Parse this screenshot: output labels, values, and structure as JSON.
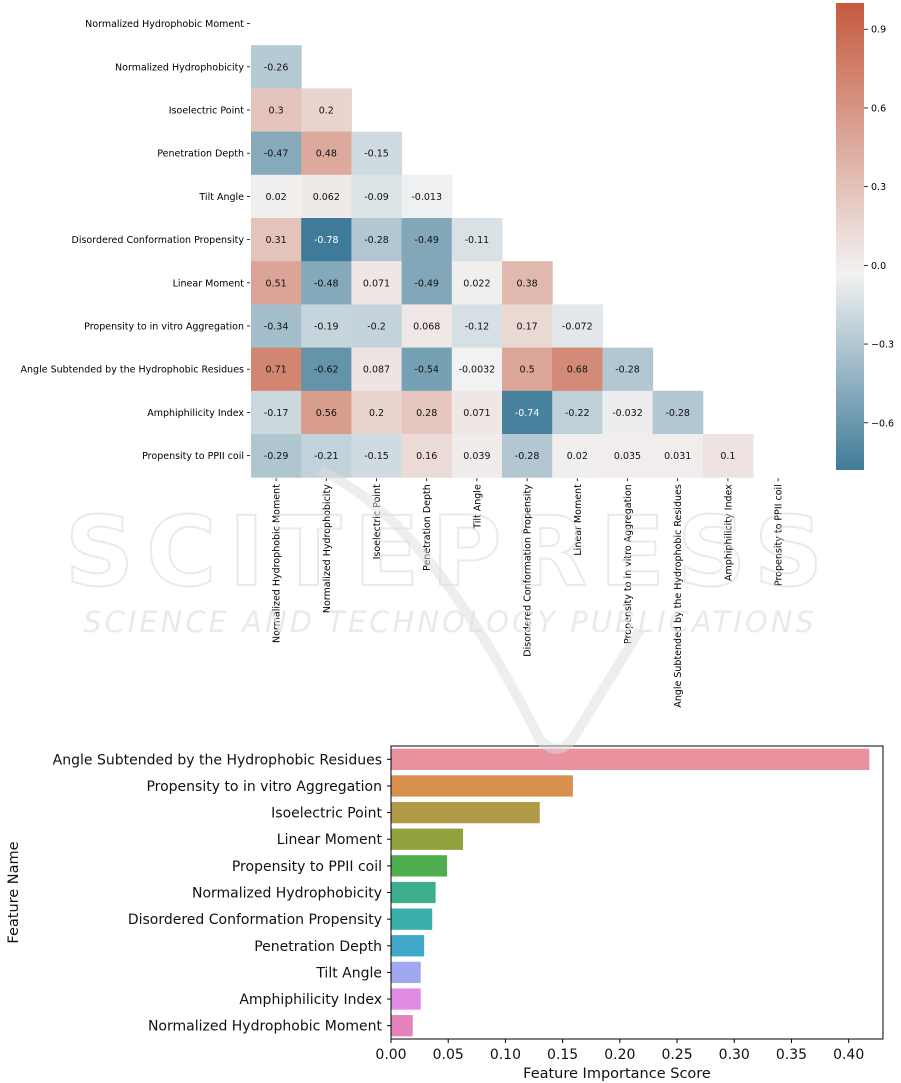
{
  "watermark": {
    "line1": "SCITEPRESS",
    "line2": "SCIENCE AND TECHNOLOGY PUBLICATIONS"
  },
  "chart_data": [
    {
      "type": "heatmap",
      "variables": [
        "Normalized Hydrophobic Moment",
        "Normalized Hydrophobicity",
        "Isoelectric Point",
        "Penetration Depth",
        "Tilt Angle",
        "Disordered Conformation Propensity",
        "Linear Moment",
        "Propensity to in vitro Aggregation",
        "Angle Subtended by the Hydrophobic Residues",
        "Amphiphilicity Index",
        "Propensity to PPII coil"
      ],
      "values": [
        [],
        [
          -0.26
        ],
        [
          0.3,
          0.2
        ],
        [
          -0.47,
          0.48,
          -0.15
        ],
        [
          0.02,
          0.062,
          -0.09,
          -0.013
        ],
        [
          0.31,
          -0.78,
          -0.28,
          -0.49,
          -0.11
        ],
        [
          0.51,
          -0.48,
          0.071,
          -0.49,
          0.022,
          0.38
        ],
        [
          -0.34,
          -0.19,
          -0.2,
          0.068,
          -0.12,
          0.17,
          -0.072
        ],
        [
          0.71,
          -0.62,
          0.087,
          -0.54,
          -0.0032,
          0.5,
          0.68,
          -0.28
        ],
        [
          -0.17,
          0.56,
          0.2,
          0.28,
          0.071,
          -0.74,
          -0.22,
          -0.032,
          -0.28
        ],
        [
          -0.29,
          -0.21,
          -0.15,
          0.16,
          0.039,
          -0.28,
          0.02,
          0.035,
          0.031,
          0.1
        ]
      ],
      "mask": "upper-triangle",
      "colorbar": {
        "range": [
          -0.78,
          1.0
        ],
        "ticks": [
          "0.9",
          "0.6",
          "0.3",
          "0.0",
          "−0.3",
          "−0.6"
        ]
      },
      "colors": {
        "negative": "#3f7b98",
        "neutral": "#f2f2f2",
        "positive": "#c55a3e"
      }
    },
    {
      "type": "bar",
      "orientation": "horizontal",
      "categories": [
        "Angle Subtended by the Hydrophobic Residues",
        "Propensity to in vitro Aggregation",
        "Isoelectric Point",
        "Linear Moment",
        "Propensity to PPII coil",
        "Normalized Hydrophobicity",
        "Disordered Conformation Propensity",
        "Penetration Depth",
        "Tilt Angle",
        "Amphiphilicity Index",
        "Normalized Hydrophobic Moment"
      ],
      "values": [
        0.418,
        0.159,
        0.13,
        0.063,
        0.049,
        0.039,
        0.036,
        0.029,
        0.026,
        0.026,
        0.019
      ],
      "colors": [
        "#e8919f",
        "#d8904e",
        "#b09a48",
        "#8fa23e",
        "#4eae4f",
        "#3daf8e",
        "#3aaeaa",
        "#42a8c9",
        "#9fa8ef",
        "#e08be4",
        "#e583ba"
      ],
      "xlabel": "Feature Importance Score",
      "ylabel": "Feature Name",
      "xlim": [
        0.0,
        0.43
      ],
      "xticks": [
        "0.00",
        "0.05",
        "0.10",
        "0.15",
        "0.20",
        "0.25",
        "0.30",
        "0.35",
        "0.40"
      ]
    }
  ]
}
